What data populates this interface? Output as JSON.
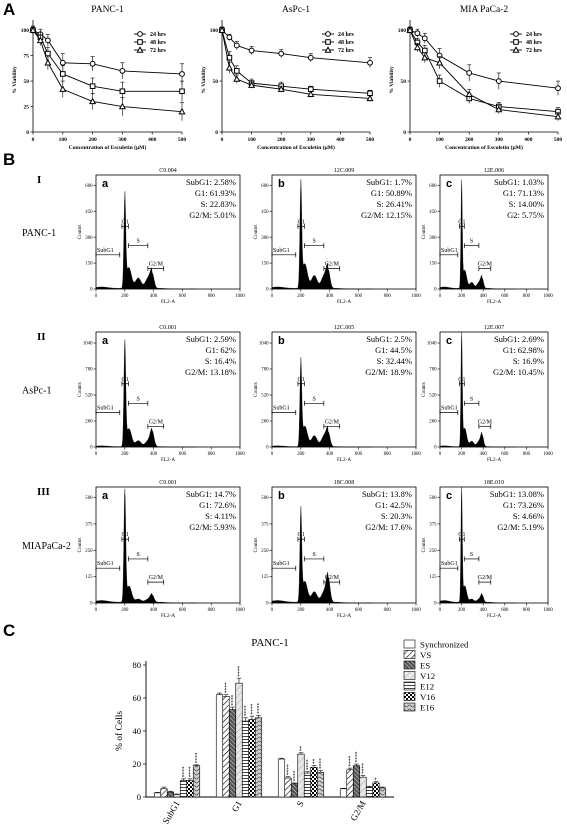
{
  "panel_labels": [
    "A",
    "B",
    "C"
  ],
  "chart_data": [
    {
      "type": "line",
      "panel": "A",
      "title": "PANC-1",
      "xlabel": "Concentration of Esculetin (µM)",
      "ylabel": "% Viability",
      "x": [
        0,
        25,
        50,
        100,
        200,
        300,
        500
      ],
      "xticks": [
        0,
        100,
        200,
        300,
        400,
        500
      ],
      "yticks": [
        0,
        25,
        50,
        75,
        100
      ],
      "xlim": [
        0,
        500
      ],
      "ylim": [
        0,
        110
      ],
      "legend_position": "top-right",
      "series": [
        {
          "name": "24 hrs",
          "marker": "circle",
          "values": [
            100,
            96,
            90,
            68,
            67,
            60,
            57
          ],
          "err": [
            4,
            5,
            6,
            9,
            7,
            8,
            10
          ]
        },
        {
          "name": "48 hrs",
          "marker": "square",
          "values": [
            100,
            93,
            77,
            57,
            45,
            40,
            40
          ],
          "err": [
            4,
            5,
            6,
            8,
            8,
            9,
            10
          ]
        },
        {
          "name": "72 hrs",
          "marker": "triangle",
          "values": [
            100,
            90,
            68,
            42,
            30,
            25,
            20
          ],
          "err": [
            3,
            5,
            7,
            8,
            8,
            9,
            9
          ]
        }
      ]
    },
    {
      "type": "line",
      "panel": "A",
      "title": "AsPc-1",
      "xlabel": "Concentration of Esculetin (µM)",
      "ylabel": "% Viability",
      "x": [
        0,
        25,
        50,
        100,
        200,
        300,
        500
      ],
      "xticks": [
        0,
        100,
        200,
        300,
        400,
        500
      ],
      "yticks": [
        0,
        50,
        100
      ],
      "xlim": [
        0,
        500
      ],
      "ylim": [
        0,
        110
      ],
      "legend_position": "top-right",
      "series": [
        {
          "name": "24 hrs",
          "marker": "circle",
          "values": [
            100,
            93,
            85,
            80,
            77,
            73,
            68
          ],
          "err": [
            2,
            3,
            4,
            4,
            4,
            4,
            5
          ]
        },
        {
          "name": "48 hrs",
          "marker": "square",
          "values": [
            100,
            73,
            60,
            48,
            45,
            42,
            38
          ],
          "err": [
            3,
            6,
            5,
            4,
            4,
            3,
            3
          ]
        },
        {
          "name": "72 hrs",
          "marker": "triangle",
          "values": [
            100,
            63,
            52,
            46,
            42,
            37,
            33
          ],
          "err": [
            3,
            5,
            4,
            3,
            3,
            3,
            3
          ]
        }
      ]
    },
    {
      "type": "line",
      "panel": "A",
      "title": "MIA PaCa-2",
      "xlabel": "Concentration of Esculetin (µM)",
      "ylabel": "% Viability",
      "x": [
        0,
        25,
        50,
        100,
        200,
        300,
        500
      ],
      "xticks": [
        0,
        100,
        200,
        300,
        400,
        500
      ],
      "yticks": [
        0,
        50,
        100
      ],
      "xlim": [
        0,
        500
      ],
      "ylim": [
        0,
        110
      ],
      "legend_position": "top-right",
      "series": [
        {
          "name": "24 hrs",
          "marker": "circle",
          "values": [
            100,
            97,
            92,
            75,
            58,
            50,
            43
          ],
          "err": [
            3,
            4,
            5,
            7,
            8,
            8,
            7
          ]
        },
        {
          "name": "48 hrs",
          "marker": "square",
          "values": [
            100,
            88,
            80,
            50,
            33,
            25,
            20
          ],
          "err": [
            3,
            4,
            5,
            6,
            5,
            4,
            4
          ]
        },
        {
          "name": "72 hrs",
          "marker": "triangle",
          "values": [
            100,
            83,
            73,
            68,
            37,
            22,
            15
          ],
          "err": [
            3,
            4,
            5,
            6,
            5,
            4,
            4
          ]
        }
      ]
    },
    {
      "type": "histogram-grid",
      "panel": "B",
      "xlabel": "FL2-A",
      "ylabel": "Counts",
      "xticks": [
        0,
        200,
        400,
        600,
        800,
        1000
      ],
      "gate_labels": [
        "SubG1",
        "G1",
        "S",
        "G2/M"
      ],
      "rows": [
        {
          "roman": "I",
          "cell_line": "PANC-1",
          "yticks": [
            0,
            150,
            300,
            450,
            600
          ],
          "ymax": 660,
          "panels": [
            {
              "letter": "a",
              "sample": "C0.004",
              "stats": [
                "SubG1: 2.58%",
                "G1: 61.93%",
                "S: 22.83%",
                "G2/M: 5.01%"
              ],
              "g1_peak": 520,
              "g2_peak": 90,
              "s_level": 60
            },
            {
              "letter": "b",
              "sample": "12C.009",
              "stats": [
                "SubG1: 1.7%",
                "G1: 50.89%",
                "S: 26.41%",
                "G2/M: 12.15%"
              ],
              "g1_peak": 580,
              "g2_peak": 110,
              "s_level": 75
            },
            {
              "letter": "c",
              "sample": "12E.006",
              "stats": [
                "SubG1: 1.03%",
                "G1: 71.13%",
                "S: 14.00%",
                "G2: 5.75%"
              ],
              "g1_peak": 600,
              "g2_peak": 60,
              "s_level": 35
            }
          ]
        },
        {
          "roman": "II",
          "cell_line": "AsPc-1",
          "yticks": [
            0,
            260,
            520,
            780,
            1040
          ],
          "ymax": 1150,
          "panels": [
            {
              "letter": "a",
              "sample": "C0.001",
              "stats": [
                "SubG1: 2.59%",
                "G1: 62%",
                "S: 16.4%",
                "G2/M: 13.18%"
              ],
              "g1_peak": 1020,
              "g2_peak": 160,
              "s_level": 60
            },
            {
              "letter": "b",
              "sample": "12C.005",
              "stats": [
                "SubG1: 2.5%",
                "G1: 44.5%",
                "S: 32.44%",
                "G2/M: 18.9%"
              ],
              "g1_peak": 820,
              "g2_peak": 150,
              "s_level": 110
            },
            {
              "letter": "c",
              "sample": "12E.007",
              "stats": [
                "SubG1: 2.69%",
                "G1: 62.98%",
                "S: 16.9%",
                "G2/M: 10.45%"
              ],
              "g1_peak": 1100,
              "g2_peak": 120,
              "s_level": 55
            }
          ]
        },
        {
          "roman": "III",
          "cell_line": "MIAPaCa-2",
          "yticks": [
            0,
            125,
            250,
            375,
            500
          ],
          "ymax": 550,
          "panels": [
            {
              "letter": "a",
              "sample": "C0.001",
              "stats": [
                "SubG1: 14.7%",
                "G1: 72.6%",
                "S: 4.11%",
                "G2/M: 5.93%"
              ],
              "g1_peak": 520,
              "g2_peak": 35,
              "s_level": 15
            },
            {
              "letter": "b",
              "sample": "18C.008",
              "stats": [
                "SubG1: 13.8%",
                "G1: 42.5%",
                "S: 20.3%",
                "G2/M: 17.6%"
              ],
              "g1_peak": 420,
              "g2_peak": 120,
              "s_level": 50
            },
            {
              "letter": "c",
              "sample": "18E.010",
              "stats": [
                "SubG1: 13.08%",
                "G1: 73.26%",
                "S: 4.66%",
                "G2/M: 5.19%"
              ],
              "g1_peak": 530,
              "g2_peak": 35,
              "s_level": 15
            }
          ]
        }
      ]
    },
    {
      "type": "bar",
      "panel": "C",
      "title": "PANC-1",
      "ylabel": "% of Cells",
      "categories": [
        "SubG1",
        "G1",
        "S",
        "G2/M"
      ],
      "yticks": [
        0,
        20,
        40,
        60,
        80
      ],
      "ylim": [
        0,
        80
      ],
      "legend_position": "top-right",
      "series": [
        {
          "name": "Synchronized",
          "pattern": "white",
          "values": [
            2.5,
            62,
            23,
            5
          ],
          "err": [
            0.3,
            1,
            0.5,
            0.3
          ],
          "sig": [
            "",
            "",
            "",
            ""
          ]
        },
        {
          "name": "VS",
          "pattern": "diag",
          "values": [
            5,
            61,
            11.5,
            16.5
          ],
          "err": [
            1,
            1,
            0.8,
            1
          ],
          "sig": [
            "",
            "****",
            "****",
            "****"
          ]
        },
        {
          "name": "ES",
          "pattern": "dense",
          "values": [
            3,
            53,
            8,
            19
          ],
          "err": [
            0.5,
            1.5,
            0.5,
            1
          ],
          "sig": [
            "",
            "****",
            "****",
            "****"
          ]
        },
        {
          "name": "V12",
          "pattern": "light",
          "values": [
            1.5,
            69,
            26,
            12
          ],
          "err": [
            0.3,
            3,
            0.8,
            1
          ],
          "sig": [
            "",
            "****",
            "**",
            "****"
          ]
        },
        {
          "name": "E12",
          "pattern": "horiz",
          "values": [
            10,
            46,
            14.5,
            6
          ],
          "err": [
            1,
            2,
            0.8,
            0.5
          ],
          "sig": [
            "****",
            "****",
            "****",
            ""
          ]
        },
        {
          "name": "V16",
          "pattern": "check",
          "values": [
            10,
            47,
            18,
            8.5
          ],
          "err": [
            1,
            2,
            1,
            0.8
          ],
          "sig": [
            "****",
            "****",
            "**",
            "*"
          ]
        },
        {
          "name": "E16",
          "pattern": "wave",
          "values": [
            19,
            48,
            15,
            5.5
          ],
          "err": [
            0.5,
            1.5,
            1,
            0.5
          ],
          "sig": [
            "****",
            "****",
            "****",
            ""
          ]
        }
      ]
    }
  ]
}
